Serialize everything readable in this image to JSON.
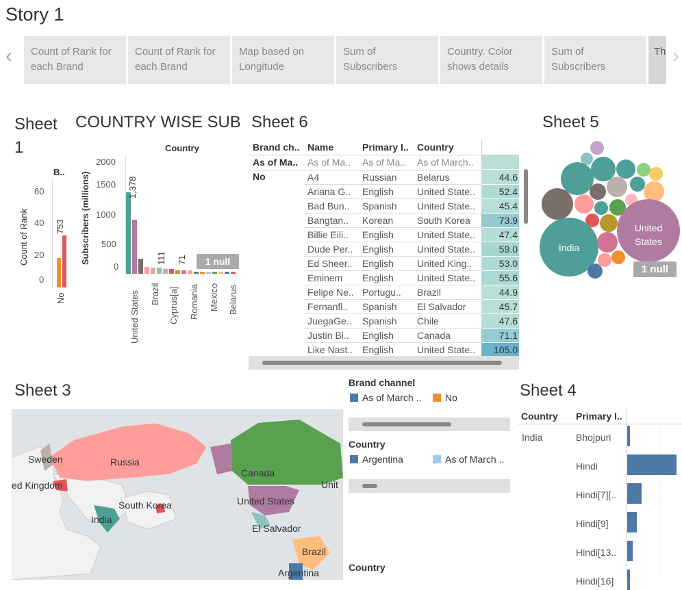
{
  "story": {
    "title": "Story 1",
    "nav_prev": "‹",
    "nav_next": "›",
    "points": [
      {
        "label": "Count of Rank for each Brand"
      },
      {
        "label": "Count of Rank for each Brand"
      },
      {
        "label": "Map based on Longitude"
      },
      {
        "label": "Sum of Subscribers"
      },
      {
        "label": "Country. Color shows details"
      },
      {
        "label": "Sum of Subscribers"
      },
      {
        "label": "Th"
      }
    ]
  },
  "sheet1": {
    "title_line1": "Sheet",
    "title_line2": "1",
    "col_header": "B..",
    "ylabel": "Count of Rank",
    "category": "No",
    "bar_label": "753"
  },
  "country_wise": {
    "title": "COUNTRY WISE SUB",
    "col_header": "Country",
    "ylabel": "Subscribers (millions)",
    "null_badge": "1 null",
    "top_label": "1,378",
    "brazil_label": "111",
    "cyprus_label": "71"
  },
  "sheet6": {
    "title": "Sheet 6",
    "headers": {
      "brand": "Brand ch..",
      "name": "Name",
      "lang": "Primary l..",
      "country": "Country"
    },
    "first_row": {
      "brand": "As of Ma..",
      "name": "As of Ma..",
      "lang": "As of Ma..",
      "country": "As of March.."
    },
    "group_label": "No",
    "rows": [
      {
        "name": "A4",
        "lang": "Russian",
        "country": "Belarus",
        "value": "44.6"
      },
      {
        "name": "Ariana G..",
        "lang": "English",
        "country": "United State..",
        "value": "52.4"
      },
      {
        "name": "Bad Bun..",
        "lang": "Spanish",
        "country": "United State..",
        "value": "45.4"
      },
      {
        "name": "Bangtan..",
        "lang": "Korean",
        "country": "South Korea",
        "value": "73.9"
      },
      {
        "name": "Billie Eili..",
        "lang": "English",
        "country": "United State..",
        "value": "47.4"
      },
      {
        "name": "Dude Per..",
        "lang": "English",
        "country": "United State..",
        "value": "59.0"
      },
      {
        "name": "Ed Sheer..",
        "lang": "English",
        "country": "United King..",
        "value": "53.0"
      },
      {
        "name": "Eminem",
        "lang": "English",
        "country": "United State..",
        "value": "55.6"
      },
      {
        "name": "Felipe Ne..",
        "lang": "Portugu..",
        "country": "Brazil",
        "value": "44.9"
      },
      {
        "name": "Fernanfl..",
        "lang": "Spanish",
        "country": "El Salvador",
        "value": "45.7"
      },
      {
        "name": "JuegaGe..",
        "lang": "Spanish",
        "country": "Chile",
        "value": "47.6"
      },
      {
        "name": "Justin Bi..",
        "lang": "English",
        "country": "Canada",
        "value": "71.1"
      },
      {
        "name": "Like Nast..",
        "lang": "English",
        "country": "United State..",
        "value": "105.0"
      }
    ]
  },
  "sheet5": {
    "title": "Sheet 5",
    "label_india": "India",
    "label_us_line1": "United",
    "label_us_line2": "States",
    "null_badge": "1 null"
  },
  "sheet3": {
    "title": "Sheet 3",
    "labels": [
      "Sweden",
      "ed Kingdom",
      "Russia",
      "Canada",
      "Unit",
      "United States",
      "South Korea",
      "India",
      "El Salvador",
      "Brazil",
      "Argentina"
    ]
  },
  "legends": {
    "brand_title": "Brand channel",
    "brand_items": [
      "As of March ..",
      "No"
    ],
    "country_title": "Country",
    "country_items": [
      "Argentina",
      "As of March .."
    ],
    "country2_title": "Country"
  },
  "sheet4": {
    "title": "Sheet 4",
    "headers": {
      "country": "Country",
      "lang": "Primary l.."
    },
    "country": "India",
    "rows": [
      {
        "lang": "Bhojpuri",
        "value": 0.05
      },
      {
        "lang": "Hindi",
        "value": 1.0
      },
      {
        "lang": "Hindi[7][..",
        "value": 0.29
      },
      {
        "lang": "Hindi[9]",
        "value": 0.19
      },
      {
        "lang": "Hindi[13..",
        "value": 0.11
      },
      {
        "lang": "Hindi[16]",
        "value": 0.05
      }
    ]
  },
  "colors": {
    "teal": "#4e9f97",
    "purple": "#b07aa1",
    "brown": "#7a6e6a",
    "orange": "#f28e2b",
    "red": "#e15759",
    "steel_blue": "#4e79a7",
    "light_blue": "#a0cbe8",
    "table_fill": "#b8e0d6"
  }
}
